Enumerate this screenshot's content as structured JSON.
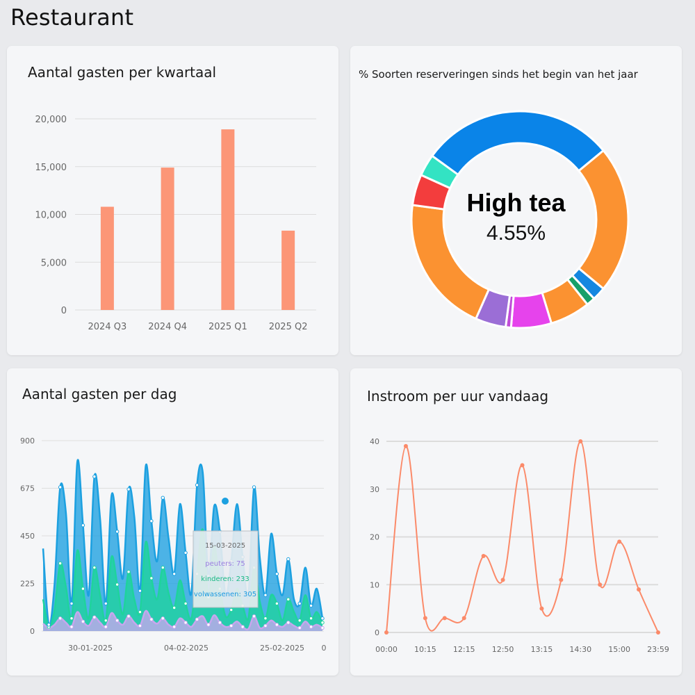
{
  "page": {
    "title": "Restaurant"
  },
  "chart_data": [
    {
      "id": "bar",
      "type": "bar",
      "title": "Aantal gasten per kwartaal",
      "categories": [
        "2024 Q3",
        "2024 Q4",
        "2025 Q1",
        "2025 Q2"
      ],
      "values": [
        10800,
        14900,
        18900,
        8300
      ],
      "ylim": [
        0,
        20000
      ],
      "yticks": [
        "0",
        "5,000",
        "10,000",
        "15,000",
        "20,000"
      ],
      "color": "#fc9677",
      "grid": true
    },
    {
      "id": "donut",
      "type": "pie",
      "title": "% Soorten reserveringen sinds het begin van het jaar",
      "slices": [
        {
          "value": 29.0,
          "color": "#0a84e8"
        },
        {
          "value": 22.0,
          "color": "#fb9231"
        },
        {
          "value": 2.0,
          "color": "#1487e0"
        },
        {
          "value": 1.3,
          "color": "#16a06a"
        },
        {
          "value": 6.0,
          "color": "#fb9231"
        },
        {
          "value": 6.0,
          "color": "#e643ec"
        },
        {
          "value": 0.8,
          "color": "#c04cd8"
        },
        {
          "value": 4.55,
          "color": "#9b6ed6"
        },
        {
          "value": 20.5,
          "color": "#fb9231"
        },
        {
          "value": 4.6,
          "color": "#f33d3d"
        },
        {
          "value": 3.25,
          "color": "#33e3c3"
        }
      ],
      "center": {
        "label": "High tea",
        "value": "4.55%"
      }
    },
    {
      "id": "area",
      "type": "area",
      "title": "Aantal gasten per dag",
      "ylim": [
        0,
        900
      ],
      "yticks": [
        "0",
        "225",
        "450",
        "675",
        "900"
      ],
      "xticks": [
        "30-01-2025",
        "04-02-2025",
        "25-02-2025",
        "0"
      ],
      "series": [
        {
          "name": "peuters",
          "color": "#c7a6ee",
          "values": [
            35,
            15,
            30,
            60,
            40,
            20,
            90,
            45,
            25,
            65,
            40,
            20,
            85,
            50,
            30,
            70,
            40,
            25,
            95,
            55,
            35,
            60,
            30,
            20,
            60,
            40,
            20,
            55,
            70,
            30,
            75,
            40,
            20,
            25,
            45,
            20,
            10,
            70,
            15,
            25,
            50,
            30,
            20,
            40,
            25,
            15,
            45,
            20,
            30,
            15
          ]
        },
        {
          "name": "kinderen",
          "color": "#1fd39c",
          "values": [
            150,
            20,
            100,
            320,
            210,
            60,
            380,
            200,
            60,
            300,
            170,
            50,
            350,
            220,
            80,
            280,
            150,
            90,
            420,
            250,
            150,
            300,
            180,
            110,
            240,
            130,
            60,
            270,
            480,
            160,
            400,
            200,
            70,
            100,
            200,
            120,
            60,
            300,
            140,
            60,
            170,
            130,
            50,
            150,
            90,
            50,
            170,
            60,
            90,
            40
          ]
        },
        {
          "name": "volwassenen",
          "color": "#1ca0e0",
          "values": [
            390,
            30,
            220,
            680,
            560,
            130,
            800,
            500,
            170,
            730,
            530,
            130,
            640,
            470,
            250,
            670,
            540,
            190,
            780,
            520,
            330,
            630,
            440,
            270,
            600,
            370,
            180,
            690,
            750,
            260,
            590,
            470,
            170,
            330,
            600,
            350,
            170,
            680,
            350,
            170,
            460,
            270,
            170,
            340,
            150,
            130,
            300,
            120,
            200,
            60
          ]
        }
      ],
      "tooltip": {
        "date": "15-03-2025",
        "lines": [
          {
            "name": "peuters",
            "value": "75",
            "color": "#9c7fe0"
          },
          {
            "name": "kinderen",
            "value": "233",
            "color": "#18b884"
          },
          {
            "name": "volwassenen",
            "value": "305",
            "color": "#1b9ae0"
          }
        ]
      }
    },
    {
      "id": "line",
      "type": "line",
      "title": "Instroom per uur vandaag",
      "ylim": [
        0,
        40
      ],
      "yticks": [
        "0",
        "10",
        "20",
        "30",
        "40"
      ],
      "xticks": [
        "00:00",
        "10:15",
        "12:15",
        "12:50",
        "13:15",
        "14:30",
        "15:00",
        "23:59"
      ],
      "values": [
        0,
        39,
        3,
        3,
        3,
        16,
        11,
        35,
        5,
        11,
        40,
        10,
        19,
        9,
        0
      ],
      "color": "#fb8a69"
    }
  ]
}
